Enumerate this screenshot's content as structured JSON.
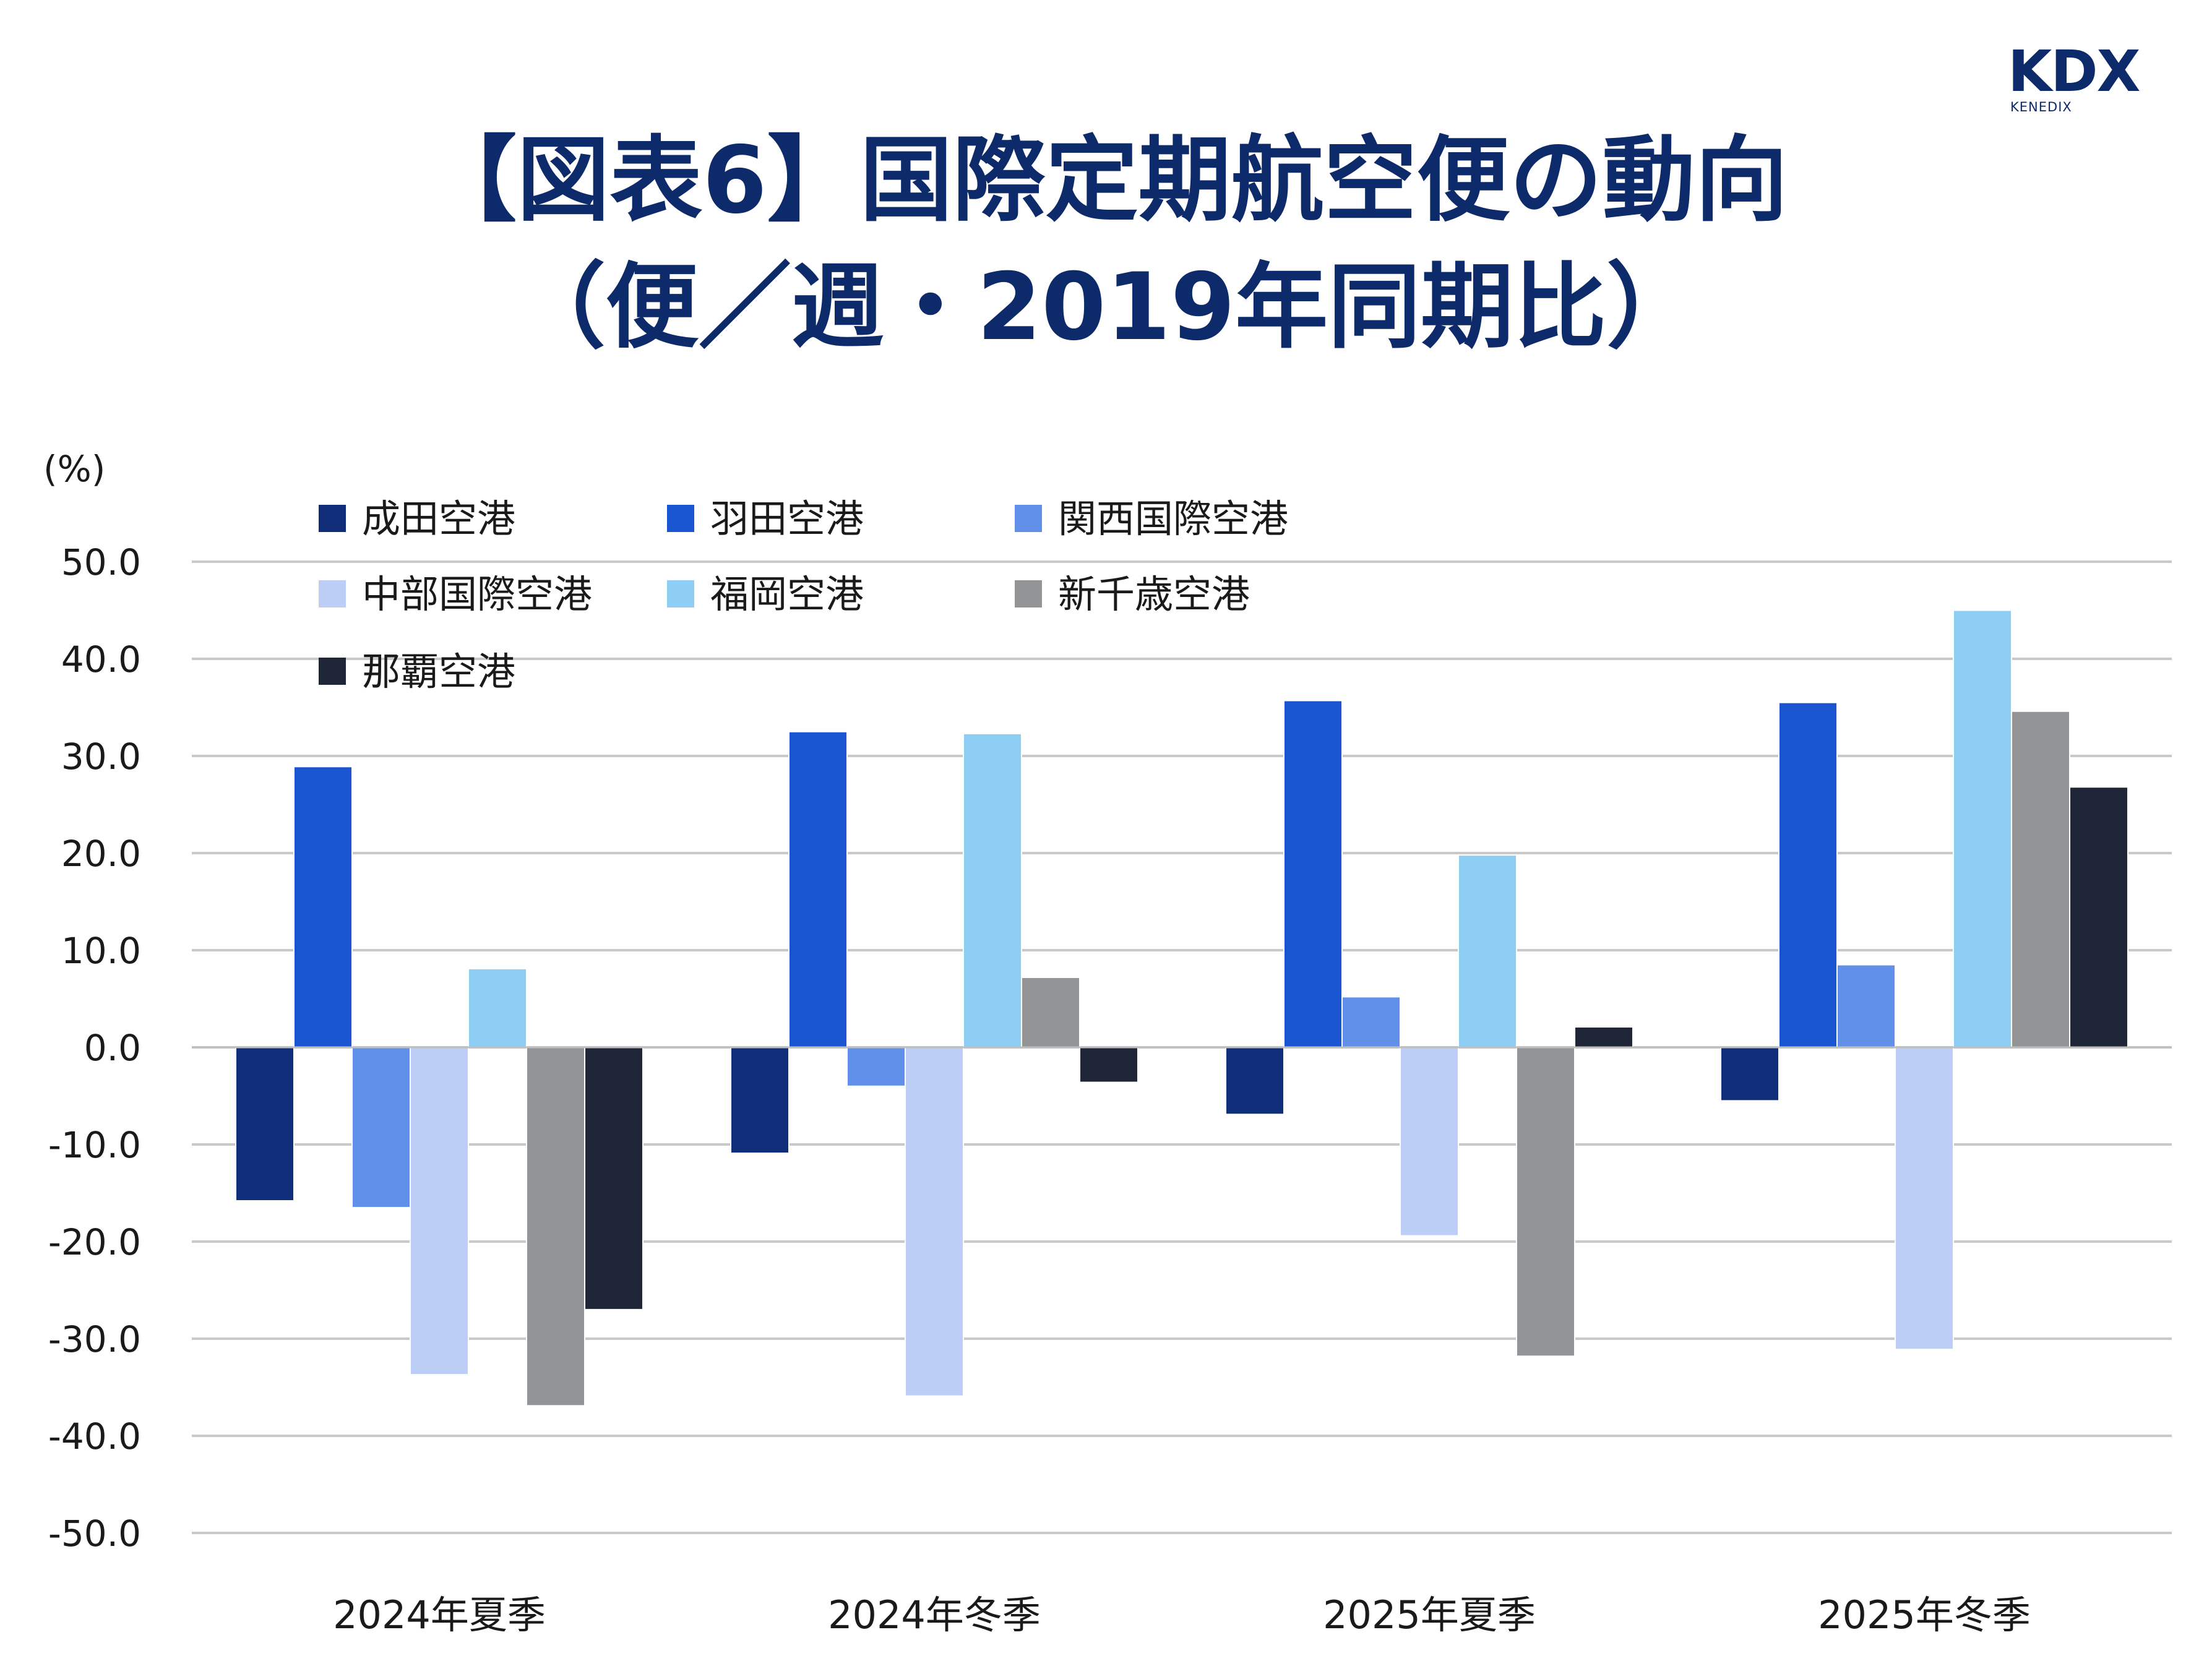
{
  "logo": {
    "name": "KDX",
    "subtext": "KENEDIX"
  },
  "title": {
    "line1": "【図表6】国際定期航空便の動向",
    "line2": "（便／週・2019年同期比）"
  },
  "chart_data": {
    "type": "bar",
    "unit_label": "(%)",
    "categories": [
      "2024年夏季",
      "2024年冬季",
      "2025年夏季",
      "2025年冬季"
    ],
    "ylim": [
      -50,
      50
    ],
    "yticks": [
      "50.0",
      "40.0",
      "30.0",
      "20.0",
      "10.0",
      "0.0",
      "-10.0",
      "-20.0",
      "-30.0",
      "-40.0",
      "-50.0"
    ],
    "grid": true,
    "legend_position": "top-left",
    "series": [
      {
        "name": "成田空港",
        "color": "#0f2d78",
        "values": [
          -15.8,
          -10.9,
          -6.9,
          -5.5
        ]
      },
      {
        "name": "羽田空港",
        "color": "#1954d1",
        "values": [
          28.9,
          32.5,
          35.7,
          35.5
        ]
      },
      {
        "name": "関西国際空港",
        "color": "#6190ea",
        "values": [
          -16.5,
          -4.0,
          5.2,
          8.5
        ]
      },
      {
        "name": "中部国際空港",
        "color": "#bccdf6",
        "values": [
          -33.7,
          -35.9,
          -19.4,
          -31.1
        ]
      },
      {
        "name": "福岡空港",
        "color": "#8ecdf4",
        "values": [
          8.1,
          32.3,
          19.8,
          45.0
        ]
      },
      {
        "name": "新千歳空港",
        "color": "#939496",
        "values": [
          -36.9,
          7.2,
          -31.8,
          34.6
        ]
      },
      {
        "name": "那覇空港",
        "color": "#1f2638",
        "values": [
          -27.0,
          -3.6,
          2.1,
          26.8
        ]
      }
    ]
  }
}
